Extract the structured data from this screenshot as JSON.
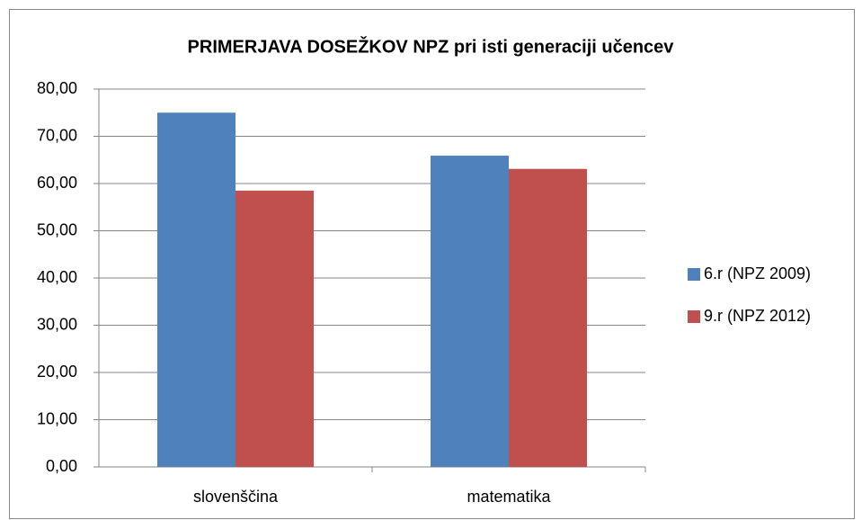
{
  "chart_data": {
    "type": "bar",
    "title": "PRIMERJAVA DOSEŽKOV NPZ pri isti generaciji učencev",
    "categories": [
      "slovenščina",
      "matematika"
    ],
    "series": [
      {
        "name": "6.r (NPZ 2009)",
        "color": "#4f81bd",
        "values": [
          75.0,
          65.9
        ]
      },
      {
        "name": "9.r (NPZ 2012)",
        "color": "#c0504d",
        "values": [
          58.5,
          63.1
        ]
      }
    ],
    "ylim": [
      0,
      80
    ],
    "yticks": [
      {
        "value": 0,
        "label": "0,00"
      },
      {
        "value": 10,
        "label": "10,00"
      },
      {
        "value": 20,
        "label": "20,00"
      },
      {
        "value": 30,
        "label": "30,00"
      },
      {
        "value": 40,
        "label": "40,00"
      },
      {
        "value": 50,
        "label": "50,00"
      },
      {
        "value": 60,
        "label": "60,00"
      },
      {
        "value": 70,
        "label": "70,00"
      },
      {
        "value": 80,
        "label": "80,00"
      }
    ],
    "grid": true,
    "legend": "right"
  }
}
